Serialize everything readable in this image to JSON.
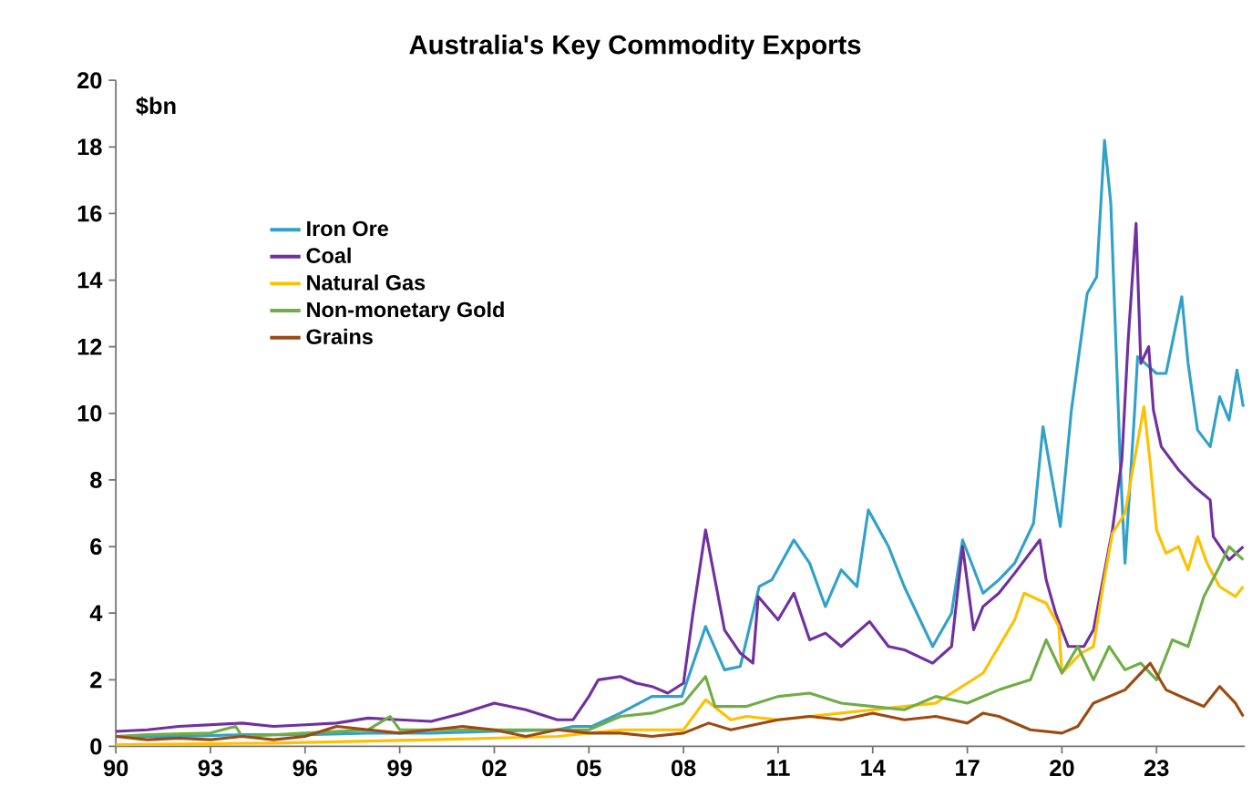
{
  "chart_data": {
    "type": "line",
    "title": "Australia's Key Commodity Exports",
    "ylabel": "$bn",
    "xlim": [
      1990,
      2025.8
    ],
    "ylim": [
      0,
      20
    ],
    "xticks": [
      {
        "value": 1990,
        "label": "90"
      },
      {
        "value": 1993,
        "label": "93"
      },
      {
        "value": 1996,
        "label": "96"
      },
      {
        "value": 1999,
        "label": "99"
      },
      {
        "value": 2002,
        "label": "02"
      },
      {
        "value": 2005,
        "label": "05"
      },
      {
        "value": 2008,
        "label": "08"
      },
      {
        "value": 2011,
        "label": "11"
      },
      {
        "value": 2014,
        "label": "14"
      },
      {
        "value": 2017,
        "label": "17"
      },
      {
        "value": 2020,
        "label": "20"
      },
      {
        "value": 2023,
        "label": "23"
      }
    ],
    "yticks": [
      0,
      2,
      4,
      6,
      8,
      10,
      12,
      14,
      16,
      18,
      20
    ],
    "grid": false,
    "legend": "top left",
    "marker": "none",
    "line_style": "solid",
    "series": [
      {
        "name": "Iron Ore",
        "color": "#31a1c9",
        "x": [
          1990,
          1992,
          1994,
          1996,
          1998,
          2000,
          2002,
          2004,
          2004.5,
          2005.1,
          2006,
          2007,
          2007.95,
          2008.7,
          2009.3,
          2009.8,
          2010.4,
          2010.8,
          2011.5,
          2012,
          2012.5,
          2013,
          2013.5,
          2013.86,
          2014.5,
          2015,
          2015.5,
          2015.9,
          2016.5,
          2016.85,
          2017.5,
          2018,
          2018.5,
          2019.1,
          2019.4,
          2019.95,
          2020.3,
          2020.8,
          2021.1,
          2021.35,
          2021.55,
          2021.85,
          2022.0,
          2022.3,
          2022.4,
          2023.0,
          2023.3,
          2023.8,
          2024.0,
          2024.3,
          2024.7,
          2025.0,
          2025.3,
          2025.55,
          2025.75
        ],
        "values": [
          0.3,
          0.3,
          0.35,
          0.35,
          0.4,
          0.4,
          0.45,
          0.5,
          0.6,
          0.6,
          1.0,
          1.5,
          1.5,
          3.6,
          2.3,
          2.4,
          4.8,
          5.0,
          6.2,
          5.5,
          4.2,
          5.3,
          4.8,
          7.1,
          6.0,
          4.8,
          3.8,
          3.0,
          4.0,
          6.2,
          4.6,
          5.0,
          5.5,
          6.7,
          9.6,
          6.6,
          10.1,
          13.6,
          14.1,
          18.2,
          16.3,
          8.5,
          5.5,
          10.0,
          11.7,
          11.2,
          11.2,
          13.5,
          11.5,
          9.5,
          9.0,
          10.5,
          9.8,
          11.3,
          10.2
        ]
      },
      {
        "name": "Coal",
        "color": "#7030a0",
        "x": [
          1990,
          1991,
          1992,
          1993,
          1994,
          1995,
          1996,
          1997,
          1998,
          1999,
          2000,
          2001,
          2002,
          2003,
          2004,
          2004.5,
          2005.0,
          2005.3,
          2006,
          2006.5,
          2007,
          2007.5,
          2008,
          2008.3,
          2008.7,
          2009,
          2009.3,
          2009.8,
          2010.2,
          2010.37,
          2011,
          2011.5,
          2012,
          2012.5,
          2013,
          2013.9,
          2014.5,
          2015,
          2015.9,
          2016.5,
          2016.85,
          2017.2,
          2017.5,
          2018,
          2018.5,
          2019.3,
          2019.5,
          2019.8,
          2020.2,
          2020.7,
          2021,
          2021.3,
          2021.6,
          2021.9,
          2022.1,
          2022.35,
          2022.5,
          2022.75,
          2022.9,
          2023.15,
          2023.7,
          2024.2,
          2024.7,
          2024.8,
          2025.3,
          2025.75
        ],
        "values": [
          0.45,
          0.5,
          0.6,
          0.65,
          0.7,
          0.6,
          0.65,
          0.7,
          0.85,
          0.8,
          0.75,
          1.0,
          1.3,
          1.1,
          0.8,
          0.8,
          1.5,
          2.0,
          2.1,
          1.9,
          1.8,
          1.6,
          1.9,
          4.0,
          6.5,
          5.0,
          3.5,
          2.8,
          2.5,
          4.5,
          3.8,
          4.6,
          3.2,
          3.4,
          3.0,
          3.75,
          3.0,
          2.9,
          2.5,
          3.0,
          6.0,
          3.5,
          4.2,
          4.6,
          5.2,
          6.2,
          5.0,
          4.0,
          3.0,
          3.0,
          3.5,
          5.0,
          6.5,
          8.6,
          12.2,
          15.7,
          11.5,
          12.0,
          10.1,
          9.0,
          8.3,
          7.8,
          7.4,
          6.3,
          5.6,
          6.0
        ]
      },
      {
        "name": "Natural Gas",
        "color": "#ffc000",
        "x": [
          1990,
          1995,
          2000,
          2004,
          2006,
          2007,
          2008,
          2008.7,
          2009.5,
          2010,
          2011,
          2012,
          2013,
          2014,
          2015,
          2016,
          2016.5,
          2017,
          2017.5,
          2018,
          2018.5,
          2018.8,
          2019.5,
          2019.9,
          2020.0,
          2020.6,
          2021.0,
          2021.3,
          2021.6,
          2022.0,
          2022.6,
          2022.8,
          2023.0,
          2023.3,
          2023.7,
          2024,
          2024.3,
          2024.6,
          2025,
          2025.5,
          2025.75
        ],
        "values": [
          0.05,
          0.1,
          0.2,
          0.3,
          0.5,
          0.5,
          0.5,
          1.4,
          0.8,
          0.9,
          0.8,
          0.9,
          1.0,
          1.1,
          1.2,
          1.3,
          1.6,
          1.9,
          2.2,
          3.0,
          3.8,
          4.6,
          4.3,
          3.6,
          2.2,
          2.8,
          3.0,
          4.8,
          6.4,
          7.0,
          10.2,
          8.5,
          6.5,
          5.8,
          6.0,
          5.3,
          6.3,
          5.5,
          4.8,
          4.5,
          4.8
        ]
      },
      {
        "name": "Non-monetary Gold",
        "color": "#70ad47",
        "x": [
          1990,
          1991,
          1993,
          1993.8,
          1994,
          1996,
          1998,
          1998.7,
          1999,
          2002,
          2005,
          2006,
          2007,
          2008,
          2008.7,
          2009,
          2010,
          2011,
          2012,
          2013,
          2014,
          2015,
          2016,
          2017,
          2018,
          2019,
          2019.5,
          2020,
          2020.5,
          2021,
          2021.5,
          2022,
          2022.5,
          2023,
          2023.5,
          2024,
          2024.5,
          2025,
          2025.3,
          2025.75
        ],
        "values": [
          0.3,
          0.35,
          0.4,
          0.6,
          0.3,
          0.4,
          0.5,
          0.9,
          0.5,
          0.5,
          0.5,
          0.9,
          1.0,
          1.3,
          2.1,
          1.2,
          1.2,
          1.5,
          1.6,
          1.3,
          1.2,
          1.1,
          1.5,
          1.3,
          1.7,
          2.0,
          3.2,
          2.2,
          3.0,
          2.0,
          3.0,
          2.3,
          2.5,
          2.0,
          3.2,
          3.0,
          4.5,
          5.4,
          6.0,
          5.6
        ]
      },
      {
        "name": "Grains",
        "color": "#9c4a12",
        "x": [
          1990,
          1991,
          1992,
          1993,
          1994,
          1995,
          1996,
          1997,
          1998,
          1999,
          2000,
          2001,
          2002,
          2003,
          2004,
          2005,
          2006,
          2007,
          2008,
          2008.8,
          2009.5,
          2010,
          2011,
          2012,
          2013,
          2014,
          2015,
          2016,
          2017,
          2017.5,
          2018,
          2019,
          2020,
          2020.5,
          2021,
          2022,
          2022.8,
          2023.3,
          2024,
          2024.5,
          2025,
          2025.5,
          2025.75
        ],
        "values": [
          0.3,
          0.2,
          0.25,
          0.2,
          0.3,
          0.2,
          0.3,
          0.6,
          0.5,
          0.4,
          0.5,
          0.6,
          0.5,
          0.3,
          0.5,
          0.4,
          0.4,
          0.3,
          0.4,
          0.7,
          0.5,
          0.6,
          0.8,
          0.9,
          0.8,
          1.0,
          0.8,
          0.9,
          0.7,
          1.0,
          0.9,
          0.5,
          0.4,
          0.6,
          1.3,
          1.7,
          2.5,
          1.7,
          1.4,
          1.2,
          1.8,
          1.3,
          0.9
        ]
      }
    ]
  }
}
